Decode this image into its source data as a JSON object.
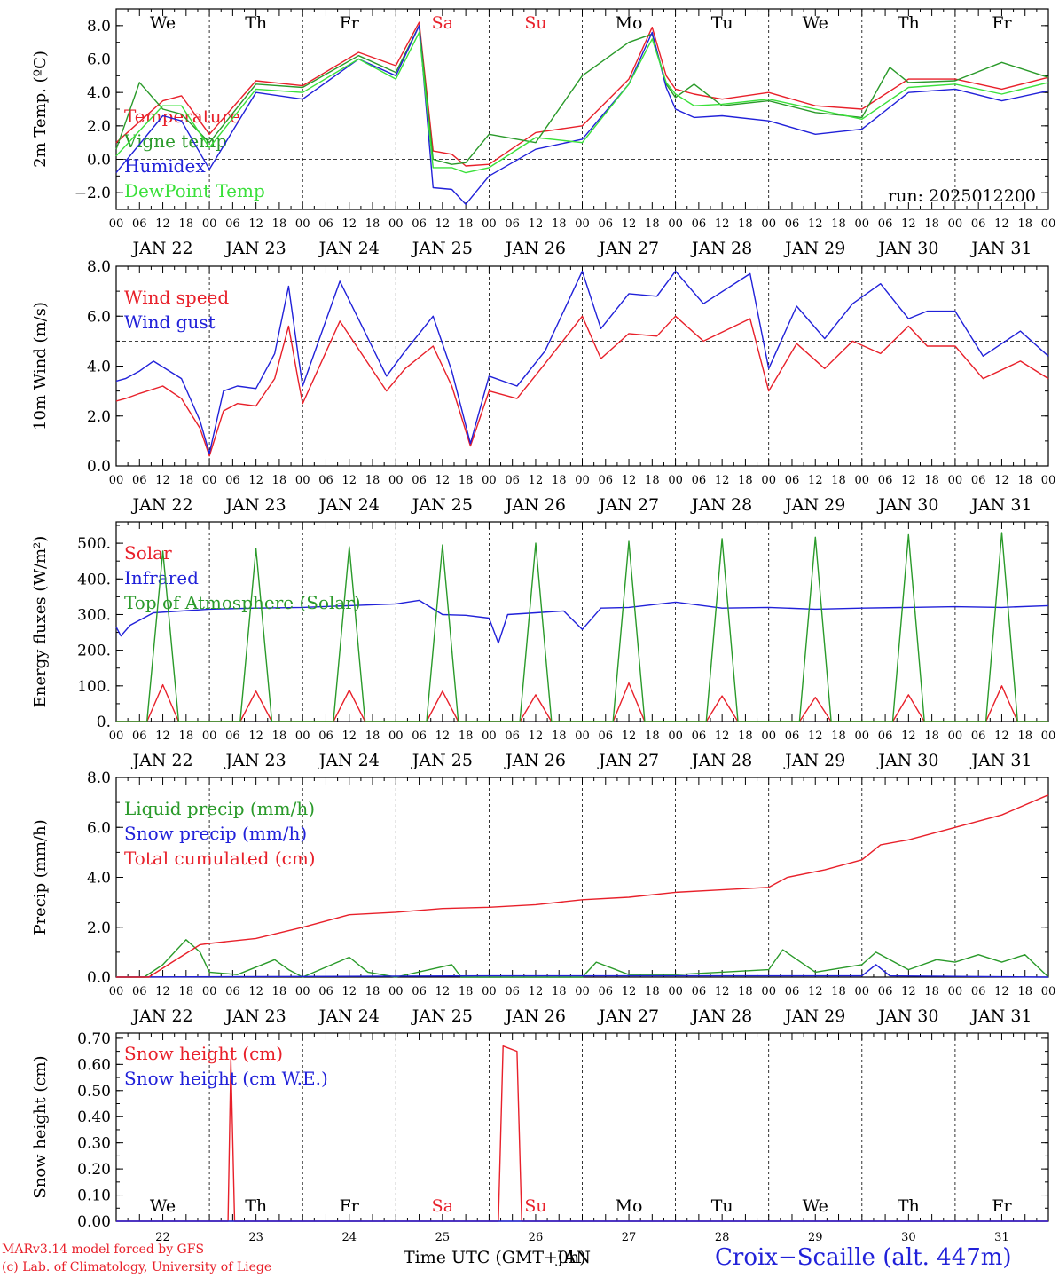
{
  "run_label": "run: 2025012200",
  "location": "Croix−Scaille (alt. 447m)",
  "credits": [
    "MARv3.14 model forced by GFS",
    "(c) Lab. of Climatology, University of Liege"
  ],
  "x_axis": {
    "hour_labels": [
      "00",
      "06",
      "12",
      "18"
    ],
    "date_labels": [
      "JAN 22",
      "JAN 23",
      "JAN 24",
      "JAN 25",
      "JAN 26",
      "JAN 27",
      "JAN 28",
      "JAN 29",
      "JAN 30",
      "JAN 31"
    ],
    "weekdays": [
      "We",
      "Th",
      "Fr",
      "Sa",
      "Su",
      "Mo",
      "Tu",
      "We",
      "Th",
      "Fr"
    ],
    "weekday_colors": [
      "#000000",
      "#000000",
      "#000000",
      "#e8202a",
      "#e8202a",
      "#000000",
      "#000000",
      "#000000",
      "#000000",
      "#000000"
    ],
    "day_numbers": [
      "22",
      "23",
      "24",
      "25",
      "26",
      "27",
      "28",
      "29",
      "30",
      "31"
    ],
    "title_bottom": "Time UTC (GMT+0h)",
    "title_overlap": "JAN"
  },
  "colors": {
    "red": "#e8202a",
    "green": "#2a9a2a",
    "blue": "#2121d9",
    "lime": "#3ae03a",
    "black": "#000000"
  },
  "chart_data": [
    {
      "type": "line",
      "ylabel": "2m Temp. (ºC)",
      "ylim": [
        -3.0,
        9.0
      ],
      "yticks": [
        -2.0,
        0.0,
        2.0,
        4.0,
        6.0,
        8.0
      ],
      "ytick_labels": [
        "−2.0",
        "0.0",
        "2.0",
        "4.0",
        "6.0",
        "8.0"
      ],
      "hline": 0.0,
      "x_days": [
        0,
        10
      ],
      "series": [
        {
          "name": "Temperature",
          "color": "red",
          "x": [
            0,
            0.5,
            0.7,
            1.0,
            1.5,
            2.0,
            2.6,
            3.0,
            3.25,
            3.4,
            3.6,
            3.75,
            4.0,
            4.5,
            5.0,
            5.5,
            5.75,
            5.9,
            6.0,
            6.2,
            6.5,
            7.0,
            7.5,
            8.0,
            8.5,
            9.0,
            9.5,
            10.0
          ],
          "y": [
            1.0,
            3.5,
            3.8,
            1.5,
            4.7,
            4.4,
            6.4,
            5.6,
            8.2,
            0.5,
            0.3,
            -0.4,
            -0.3,
            1.6,
            2.0,
            4.8,
            7.9,
            5.0,
            4.2,
            3.9,
            3.6,
            4.0,
            3.2,
            3.0,
            4.8,
            4.8,
            4.2,
            4.9
          ]
        },
        {
          "name": "Vigne temp",
          "color": "green",
          "x": [
            0,
            0.25,
            0.5,
            0.7,
            1.0,
            1.5,
            2.0,
            2.6,
            3.0,
            3.25,
            3.4,
            3.6,
            3.75,
            4.0,
            4.5,
            5.0,
            5.5,
            5.75,
            5.9,
            6.0,
            6.2,
            6.5,
            7.0,
            7.5,
            8.0,
            8.3,
            8.5,
            9.0,
            9.5,
            10.0
          ],
          "y": [
            0.6,
            4.6,
            3.0,
            2.7,
            1.0,
            4.5,
            4.3,
            6.2,
            5.2,
            8.0,
            0.0,
            -0.3,
            -0.2,
            1.5,
            1.0,
            5.0,
            7.0,
            7.5,
            4.5,
            3.7,
            4.5,
            3.2,
            3.5,
            2.8,
            2.5,
            5.5,
            4.6,
            4.7,
            5.8,
            4.9
          ]
        },
        {
          "name": "Humidex",
          "color": "blue",
          "x": [
            0,
            0.5,
            0.7,
            1.0,
            1.5,
            2.0,
            2.6,
            3.0,
            3.25,
            3.4,
            3.6,
            3.75,
            4.0,
            4.5,
            5.0,
            5.5,
            5.75,
            5.9,
            6.0,
            6.2,
            6.5,
            7.0,
            7.5,
            8.0,
            8.5,
            9.0,
            9.5,
            10.0
          ],
          "y": [
            -0.8,
            2.6,
            2.3,
            -0.6,
            4.0,
            3.6,
            6.0,
            5.0,
            8.0,
            -1.7,
            -1.8,
            -2.7,
            -1.0,
            0.6,
            1.2,
            4.5,
            7.6,
            4.3,
            3.0,
            2.5,
            2.6,
            2.3,
            1.5,
            1.8,
            4.0,
            4.2,
            3.5,
            4.1
          ]
        },
        {
          "name": "DewPoint Temp",
          "color": "lime",
          "x": [
            0,
            0.5,
            0.7,
            1.0,
            1.5,
            2.0,
            2.6,
            3.0,
            3.25,
            3.4,
            3.6,
            3.75,
            4.0,
            4.5,
            5.0,
            5.5,
            5.75,
            5.9,
            6.0,
            6.2,
            6.5,
            7.0,
            7.5,
            8.0,
            8.5,
            9.0,
            9.5,
            10.0
          ],
          "y": [
            0.2,
            3.2,
            3.2,
            0.7,
            4.2,
            4.0,
            6.0,
            4.8,
            7.6,
            -0.5,
            -0.5,
            -0.8,
            -0.5,
            1.3,
            1.0,
            4.5,
            7.2,
            4.6,
            3.9,
            3.2,
            3.3,
            3.6,
            3.0,
            2.4,
            4.3,
            4.5,
            3.9,
            4.6
          ]
        }
      ]
    },
    {
      "type": "line",
      "ylabel": "10m Wind (m/s)",
      "ylim": [
        0.0,
        8.0
      ],
      "yticks": [
        0.0,
        2.0,
        4.0,
        6.0,
        8.0
      ],
      "ytick_labels": [
        "0.0",
        "2.0",
        "4.0",
        "6.0",
        "8.0"
      ],
      "hline": 5.0,
      "x_days": [
        0,
        10
      ],
      "series": [
        {
          "name": "Wind speed",
          "color": "red",
          "x": [
            0,
            0.1,
            0.25,
            0.5,
            0.7,
            0.9,
            1.0,
            1.15,
            1.3,
            1.5,
            1.7,
            1.85,
            1.95,
            2.0,
            2.4,
            2.9,
            3.1,
            3.4,
            3.6,
            3.8,
            4.0,
            4.3,
            4.6,
            5.0,
            5.2,
            5.5,
            5.8,
            6.0,
            6.3,
            6.8,
            7.0,
            7.3,
            7.6,
            7.9,
            8.2,
            8.5,
            8.7,
            9.0,
            9.3,
            9.7,
            10.0
          ],
          "y": [
            2.6,
            2.7,
            2.9,
            3.2,
            2.7,
            1.5,
            0.4,
            2.2,
            2.5,
            2.4,
            3.5,
            5.6,
            3.5,
            2.5,
            5.8,
            3.0,
            3.9,
            4.8,
            3.2,
            0.8,
            3.0,
            2.7,
            4.1,
            6.0,
            4.3,
            5.3,
            5.2,
            6.0,
            5.0,
            5.9,
            3.0,
            4.9,
            3.9,
            5.0,
            4.5,
            5.6,
            4.8,
            4.8,
            3.5,
            4.2,
            3.5
          ]
        },
        {
          "name": "Wind gust",
          "color": "blue",
          "x": [
            0,
            0.1,
            0.25,
            0.4,
            0.7,
            0.9,
            1.0,
            1.15,
            1.3,
            1.5,
            1.7,
            1.85,
            1.95,
            2.0,
            2.4,
            2.9,
            3.1,
            3.4,
            3.6,
            3.8,
            4.0,
            4.3,
            4.6,
            5.0,
            5.2,
            5.5,
            5.8,
            6.0,
            6.3,
            6.8,
            7.0,
            7.3,
            7.6,
            7.9,
            8.2,
            8.5,
            8.7,
            9.0,
            9.3,
            9.7,
            10.0
          ],
          "y": [
            3.4,
            3.5,
            3.8,
            4.2,
            3.5,
            1.8,
            0.5,
            3.0,
            3.2,
            3.1,
            4.5,
            7.2,
            4.5,
            3.2,
            7.4,
            3.6,
            4.6,
            6.0,
            3.8,
            0.9,
            3.6,
            3.2,
            4.6,
            7.8,
            5.5,
            6.9,
            6.8,
            7.8,
            6.5,
            7.7,
            3.9,
            6.4,
            5.1,
            6.5,
            7.3,
            5.9,
            6.2,
            6.2,
            4.4,
            5.4,
            4.4
          ]
        }
      ]
    },
    {
      "type": "line",
      "ylabel": "Energy fluxes (W/m²)",
      "ylim": [
        0,
        560
      ],
      "yticks": [
        0,
        100,
        200,
        300,
        400,
        500
      ],
      "ytick_labels": [
        "0.",
        "100.",
        "200.",
        "300.",
        "400.",
        "500."
      ],
      "x_days": [
        0,
        10
      ],
      "series": [
        {
          "name": "Solar",
          "color": "red",
          "x": [
            0,
            0.33,
            0.5,
            0.67,
            1.33,
            1.5,
            1.67,
            2.33,
            2.5,
            2.67,
            3.33,
            3.5,
            3.67,
            4.33,
            4.5,
            4.67,
            5.33,
            5.5,
            5.67,
            6.33,
            6.5,
            6.67,
            7.33,
            7.5,
            7.67,
            8.33,
            8.5,
            8.67,
            9.33,
            9.5,
            9.67,
            10.0
          ],
          "y": [
            0,
            0,
            103,
            0,
            0,
            85,
            0,
            0,
            88,
            0,
            0,
            85,
            0,
            0,
            75,
            0,
            0,
            108,
            0,
            0,
            72,
            0,
            0,
            68,
            0,
            0,
            75,
            0,
            0,
            100,
            0,
            0
          ]
        },
        {
          "name": "Infrared",
          "color": "blue",
          "x": [
            0,
            0.05,
            0.15,
            0.4,
            1.0,
            1.5,
            2.0,
            2.5,
            3.0,
            3.25,
            3.5,
            3.75,
            4.0,
            4.1,
            4.2,
            4.5,
            4.8,
            5.0,
            5.2,
            5.5,
            6.0,
            6.5,
            7.0,
            7.5,
            8.0,
            8.5,
            9.0,
            9.5,
            10.0
          ],
          "y": [
            265,
            240,
            270,
            305,
            315,
            318,
            320,
            325,
            330,
            340,
            300,
            298,
            290,
            220,
            300,
            305,
            310,
            258,
            318,
            320,
            335,
            318,
            320,
            315,
            318,
            320,
            322,
            320,
            325
          ]
        },
        {
          "name": "Top of Atmosphere (Solar)",
          "color": "green",
          "x": [
            0,
            0.33,
            0.5,
            0.67,
            1.33,
            1.5,
            1.67,
            2.33,
            2.5,
            2.67,
            3.33,
            3.5,
            3.67,
            4.33,
            4.5,
            4.67,
            5.33,
            5.5,
            5.67,
            6.33,
            6.5,
            6.67,
            7.33,
            7.5,
            7.67,
            8.33,
            8.5,
            8.67,
            9.33,
            9.5,
            9.67,
            10.0
          ],
          "y": [
            0,
            0,
            478,
            0,
            0,
            485,
            0,
            0,
            490,
            0,
            0,
            495,
            0,
            0,
            500,
            0,
            0,
            505,
            0,
            0,
            513,
            0,
            0,
            517,
            0,
            0,
            524,
            0,
            0,
            530,
            0,
            0
          ]
        }
      ]
    },
    {
      "type": "line",
      "ylabel": "Precip (mm/h)",
      "ylim": [
        0.0,
        8.0
      ],
      "yticks": [
        0.0,
        2.0,
        4.0,
        6.0,
        8.0
      ],
      "ytick_labels": [
        "0.0",
        "2.0",
        "4.0",
        "6.0",
        "8.0"
      ],
      "x_days": [
        0,
        10
      ],
      "series": [
        {
          "name": "Liquid precip (mm/h)",
          "color": "green",
          "x": [
            0,
            0.3,
            0.5,
            0.75,
            0.9,
            1.0,
            1.3,
            1.7,
            1.85,
            2.0,
            2.5,
            2.7,
            3.0,
            3.6,
            3.7,
            4.0,
            5.0,
            5.15,
            5.5,
            6.0,
            7.0,
            7.15,
            7.5,
            8.0,
            8.15,
            8.5,
            8.8,
            9.0,
            9.25,
            9.5,
            9.75,
            10.0
          ],
          "y": [
            0.0,
            0.0,
            0.5,
            1.5,
            1.0,
            0.2,
            0.1,
            0.7,
            0.3,
            0.0,
            0.8,
            0.2,
            0.0,
            0.5,
            0.0,
            0.0,
            0.0,
            0.6,
            0.1,
            0.1,
            0.3,
            1.1,
            0.2,
            0.5,
            1.0,
            0.3,
            0.7,
            0.6,
            0.9,
            0.6,
            0.9,
            0.0
          ]
        },
        {
          "name": "Snow precip (mm/h)",
          "color": "blue",
          "x": [
            0,
            4.0,
            8.0,
            8.15,
            8.3,
            10.0
          ],
          "y": [
            0.0,
            0.05,
            0.05,
            0.5,
            0.05,
            0.0
          ]
        },
        {
          "name": "Total cumulated (cm)",
          "color": "red",
          "x": [
            0,
            0.35,
            0.6,
            0.9,
            1.0,
            1.5,
            2.0,
            2.5,
            3.0,
            3.5,
            4.0,
            4.5,
            5.0,
            5.5,
            6.0,
            6.5,
            7.0,
            7.2,
            7.6,
            8.0,
            8.2,
            8.5,
            9.0,
            9.5,
            10.0
          ],
          "y": [
            0.0,
            0.0,
            0.6,
            1.3,
            1.35,
            1.55,
            2.0,
            2.5,
            2.6,
            2.75,
            2.8,
            2.9,
            3.1,
            3.2,
            3.4,
            3.5,
            3.6,
            4.0,
            4.3,
            4.7,
            5.3,
            5.5,
            6.0,
            6.5,
            7.3
          ]
        }
      ]
    },
    {
      "type": "line",
      "ylabel": "Snow height (cm)",
      "ylim": [
        0.0,
        0.72
      ],
      "yticks": [
        0.0,
        0.1,
        0.2,
        0.3,
        0.4,
        0.5,
        0.6,
        0.7
      ],
      "ytick_labels": [
        "0.00",
        "0.10",
        "0.20",
        "0.30",
        "0.40",
        "0.50",
        "0.60",
        "0.70"
      ],
      "x_days": [
        0,
        10
      ],
      "series": [
        {
          "name": "Snow height (cm)",
          "color": "red",
          "x": [
            0,
            1.2,
            1.23,
            1.27,
            4.1,
            4.15,
            4.3,
            4.35,
            10.0
          ],
          "y": [
            0,
            0,
            0.62,
            0,
            0,
            0.67,
            0.65,
            0,
            0
          ]
        },
        {
          "name": "Snow height (cm W.E.)",
          "color": "blue",
          "x": [
            0,
            10.0
          ],
          "y": [
            0,
            0
          ]
        }
      ]
    }
  ]
}
